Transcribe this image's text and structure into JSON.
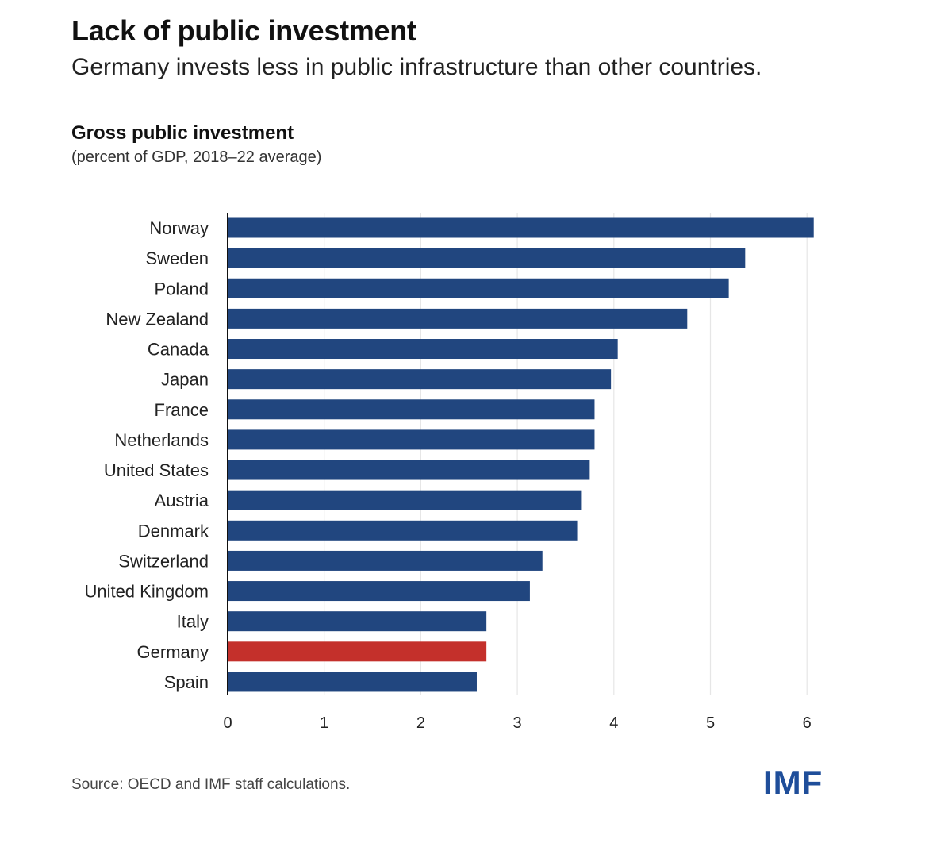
{
  "header": {
    "title": "Lack of public investment",
    "subtitle": "Germany invests less in public infrastructure than other countries."
  },
  "chart_data": {
    "type": "bar",
    "orientation": "horizontal",
    "title": "Gross public investment",
    "subtitle": "(percent of GDP, 2018–22 average)",
    "categories": [
      "Norway",
      "Sweden",
      "Poland",
      "New Zealand",
      "Canada",
      "Japan",
      "France",
      "Netherlands",
      "United States",
      "Austria",
      "Denmark",
      "Switzerland",
      "United Kingdom",
      "Italy",
      "Germany",
      "Spain"
    ],
    "values": [
      6.07,
      5.36,
      5.19,
      4.76,
      4.04,
      3.97,
      3.8,
      3.8,
      3.75,
      3.66,
      3.62,
      3.26,
      3.13,
      2.68,
      2.68,
      2.58
    ],
    "xlim": [
      0,
      6
    ],
    "xticks": [
      "0",
      "1",
      "2",
      "3",
      "4",
      "5",
      "6"
    ],
    "grid": true,
    "highlight": "Germany",
    "colors": {
      "default": "#21467f",
      "highlight": "#c4302b",
      "grid": "#e6e6e6",
      "axis": "#111111"
    }
  },
  "footer": {
    "source": "Source: OECD and IMF staff calculations.",
    "logo": "IMF"
  }
}
